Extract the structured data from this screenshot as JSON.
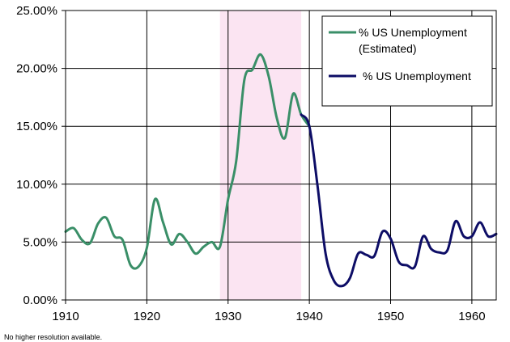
{
  "chart_data": {
    "type": "line",
    "title": "",
    "xlabel": "",
    "ylabel": "",
    "xlim": [
      1910,
      1963
    ],
    "ylim": [
      0,
      25
    ],
    "x_ticks": [
      1910,
      1920,
      1930,
      1940,
      1950,
      1960
    ],
    "y_ticks": [
      0,
      5,
      10,
      15,
      20,
      25
    ],
    "y_tick_labels": [
      "0.00%",
      "5.00%",
      "10.00%",
      "15.00%",
      "20.00%",
      "25.00%"
    ],
    "grid": true,
    "shaded_region": {
      "x": [
        1929,
        1939
      ],
      "color": "#fbe4f2"
    },
    "legend": {
      "placement": "top-right"
    },
    "series": [
      {
        "name": "% US Unemployment (Estimated)",
        "name_lines": [
          "% US Unemployment",
          "(Estimated)"
        ],
        "color": "#3a8f68",
        "x": [
          1910,
          1911,
          1912,
          1913,
          1914,
          1915,
          1916,
          1917,
          1918,
          1919,
          1920,
          1921,
          1922,
          1923,
          1924,
          1925,
          1926,
          1927,
          1928,
          1929,
          1930,
          1931,
          1932,
          1933,
          1934,
          1935,
          1936,
          1937,
          1938,
          1939,
          1940
        ],
        "y": [
          5.9,
          6.2,
          5.2,
          4.9,
          6.6,
          7.1,
          5.5,
          5.2,
          3.0,
          2.9,
          4.5,
          8.7,
          6.7,
          4.8,
          5.7,
          5.0,
          4.0,
          4.6,
          5.0,
          4.6,
          8.7,
          12.0,
          19.0,
          19.9,
          21.2,
          19.3,
          15.7,
          14.0,
          17.8,
          16.0,
          15.0
        ]
      },
      {
        "name": "% US Unemployment",
        "color": "#0d0d66",
        "x": [
          1939,
          1940,
          1941,
          1942,
          1943,
          1944,
          1945,
          1946,
          1947,
          1948,
          1949,
          1950,
          1951,
          1952,
          1953,
          1954,
          1955,
          1956,
          1957,
          1958,
          1959,
          1960,
          1961,
          1962,
          1963
        ],
        "y": [
          16.0,
          15.0,
          9.9,
          4.0,
          1.7,
          1.2,
          1.9,
          4.0,
          3.9,
          3.8,
          5.9,
          5.3,
          3.3,
          3.0,
          2.9,
          5.5,
          4.4,
          4.1,
          4.3,
          6.8,
          5.5,
          5.5,
          6.7,
          5.5,
          5.7
        ]
      }
    ]
  },
  "footer": {
    "note": "No higher resolution available."
  }
}
